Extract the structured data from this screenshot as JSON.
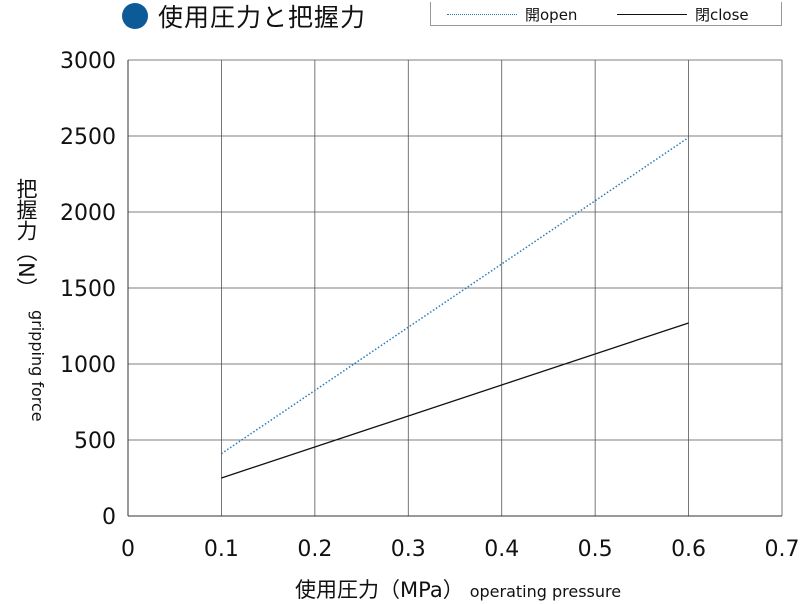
{
  "title": "使用圧力と把握力",
  "legend": {
    "open_label": "開open",
    "close_label": "閉close"
  },
  "axes": {
    "ylabel_jp": "把握力（N）",
    "ylabel_en": "gripping force",
    "xlabel_jp": "使用圧力（MPa）",
    "xlabel_en": "operating pressure"
  },
  "colors": {
    "title_dot": "#0d5a99",
    "open_series": "#2a7ab8",
    "close_series": "#111111",
    "grid": "#555555"
  },
  "chart_data": {
    "type": "line",
    "title": "使用圧力と把握力",
    "xlabel": "使用圧力（MPa） operating pressure",
    "ylabel": "把握力（N） gripping force",
    "xlim": [
      0,
      0.7
    ],
    "ylim": [
      0,
      3000
    ],
    "x_ticks": [
      "0",
      "0.1",
      "0.2",
      "0.3",
      "0.4",
      "0.5",
      "0.6",
      "0.7"
    ],
    "y_ticks": [
      "0",
      "500",
      "1000",
      "1500",
      "2000",
      "2500",
      "3000"
    ],
    "grid": true,
    "legend_position": "top-right",
    "series": [
      {
        "name": "開open",
        "style": "dotted",
        "color": "#2a7ab8",
        "x": [
          0.1,
          0.6
        ],
        "y": [
          410,
          2490
        ]
      },
      {
        "name": "閉close",
        "style": "solid",
        "color": "#111111",
        "x": [
          0.1,
          0.6
        ],
        "y": [
          250,
          1270
        ]
      }
    ]
  }
}
